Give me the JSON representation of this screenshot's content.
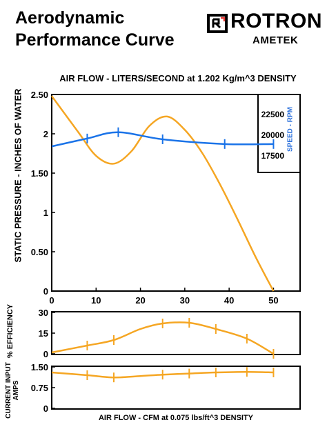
{
  "header": {
    "title_line1": "Aerodynamic",
    "title_line2": "Performance Curve",
    "brand": "ROTRON",
    "parent_brand": "AMETEK"
  },
  "colors": {
    "orange": "#f5a623",
    "blue": "#1a73e8",
    "blue_text": "#2a6fdb",
    "frame": "#000000"
  },
  "chart_data": [
    {
      "type": "line",
      "title": "AIR FLOW - LITERS/SECOND at 1.202 Kg/m^3 DENSITY",
      "ylabel": "STATIC PRESSURE - INCHES OF WATER",
      "xlim": [
        0,
        56
      ],
      "ylim": [
        0,
        2.5
      ],
      "x_ticks": [
        0,
        10,
        20,
        30,
        40,
        50
      ],
      "y_ticks": [
        "0",
        "0.50",
        "1",
        "1.50",
        "2",
        "2.50"
      ],
      "y_tick_values": [
        0,
        0.5,
        1,
        1.5,
        2,
        2.5
      ],
      "series": [
        {
          "color": "#f5a623",
          "x": [
            0,
            6,
            10,
            14,
            18,
            22,
            26,
            30,
            34,
            38,
            42,
            46,
            50
          ],
          "y": [
            2.48,
            2.02,
            1.72,
            1.62,
            1.78,
            2.1,
            2.22,
            2.05,
            1.75,
            1.35,
            0.9,
            0.43,
            0
          ]
        },
        {
          "color": "#1a73e8",
          "x": [
            0,
            8,
            15,
            25,
            39,
            50
          ],
          "y": [
            1.84,
            1.94,
            2.02,
            1.93,
            1.87,
            1.87
          ],
          "markers_x": [
            8,
            15,
            25,
            39,
            50
          ]
        }
      ],
      "secondary_axis": {
        "label": "SPEED - RPM",
        "ticks": [
          "22500",
          "20000",
          "17500"
        ],
        "tick_values": [
          22500,
          20000,
          17500
        ]
      }
    },
    {
      "type": "line",
      "ylabel": "% EFFICIENCY",
      "xlim": [
        0,
        56
      ],
      "ylim": [
        0,
        30
      ],
      "y_ticks": [
        "0",
        "15",
        "30"
      ],
      "y_tick_values": [
        0,
        15,
        30
      ],
      "series": [
        {
          "color": "#f5a623",
          "x": [
            0,
            8,
            14,
            20,
            25,
            31,
            37,
            44,
            50
          ],
          "y": [
            1,
            6,
            10,
            18,
            22,
            22.5,
            18,
            11,
            0
          ],
          "markers_x": [
            8,
            14,
            25,
            31,
            37,
            44,
            50
          ]
        }
      ]
    },
    {
      "type": "line",
      "ylabel": "CURRENT INPUT AMPS",
      "xlabel": "AIR FLOW - CFM at 0.075 lbs/ft^3 DENSITY",
      "xlim": [
        0,
        56
      ],
      "ylim": [
        0,
        1.5
      ],
      "y_ticks": [
        "0",
        "0.75",
        "1.50"
      ],
      "y_tick_values": [
        0,
        0.75,
        1.5
      ],
      "series": [
        {
          "color": "#f5a623",
          "x": [
            0,
            8,
            14,
            20,
            25,
            31,
            37,
            44,
            50
          ],
          "y": [
            1.3,
            1.2,
            1.12,
            1.17,
            1.22,
            1.26,
            1.3,
            1.32,
            1.3
          ],
          "markers_x": [
            8,
            14,
            25,
            31,
            37,
            44,
            50
          ]
        }
      ]
    }
  ]
}
